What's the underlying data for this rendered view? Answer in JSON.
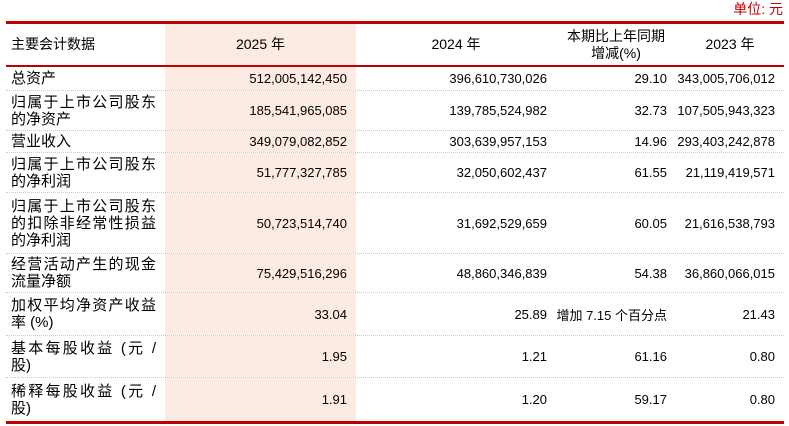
{
  "unit_label": "单位: 元",
  "colors": {
    "accent_red": "#c00000",
    "highlight_column_bg": "#fcebe2",
    "row_separator": "#c9c9c9",
    "text": "#000000"
  },
  "table": {
    "header": {
      "col1": "主要会计数据",
      "col2": "2025 年",
      "col3": "2024 年",
      "col4_line1": "本期比上年同期",
      "col4_line2": "增减(%)",
      "col5": "2023 年"
    },
    "rows": [
      {
        "label": "总资产",
        "y2025": "512,005,142,450",
        "y2024": "396,610,730,026",
        "change": "29.10",
        "y2023": "343,005,706,012"
      },
      {
        "label": "归属于上市公司股东的净资产",
        "y2025": "185,541,965,085",
        "y2024": "139,785,524,982",
        "change": "32.73",
        "y2023": "107,505,943,323"
      },
      {
        "label": "营业收入",
        "y2025": "349,079,082,852",
        "y2024": "303,639,957,153",
        "change": "14.96",
        "y2023": "293,403,242,878"
      },
      {
        "label": "归属于上市公司股东的净利润",
        "y2025": "51,777,327,785",
        "y2024": "32,050,602,437",
        "change": "61.55",
        "y2023": "21,119,419,571"
      },
      {
        "label": "归属于上市公司股东的扣除非经常性损益的净利润",
        "y2025": "50,723,514,740",
        "y2024": "31,692,529,659",
        "change": "60.05",
        "y2023": "21,616,538,793"
      },
      {
        "label": "经营活动产生的现金流量净额",
        "y2025": "75,429,516,296",
        "y2024": "48,860,346,839",
        "change": "54.38",
        "y2023": "36,860,066,015"
      },
      {
        "label": "加权平均净资产收益率 (%)",
        "y2025": "33.04",
        "y2024": "25.89",
        "change": "增加 7.15 个百分点",
        "y2023": "21.43"
      },
      {
        "label": "基本每股收益 (元 / 股)",
        "y2025": "1.95",
        "y2024": "1.21",
        "change": "61.16",
        "y2023": "0.80"
      },
      {
        "label": "稀释每股收益 (元 / 股)",
        "y2025": "1.91",
        "y2024": "1.20",
        "change": "59.17",
        "y2023": "0.80"
      }
    ]
  }
}
